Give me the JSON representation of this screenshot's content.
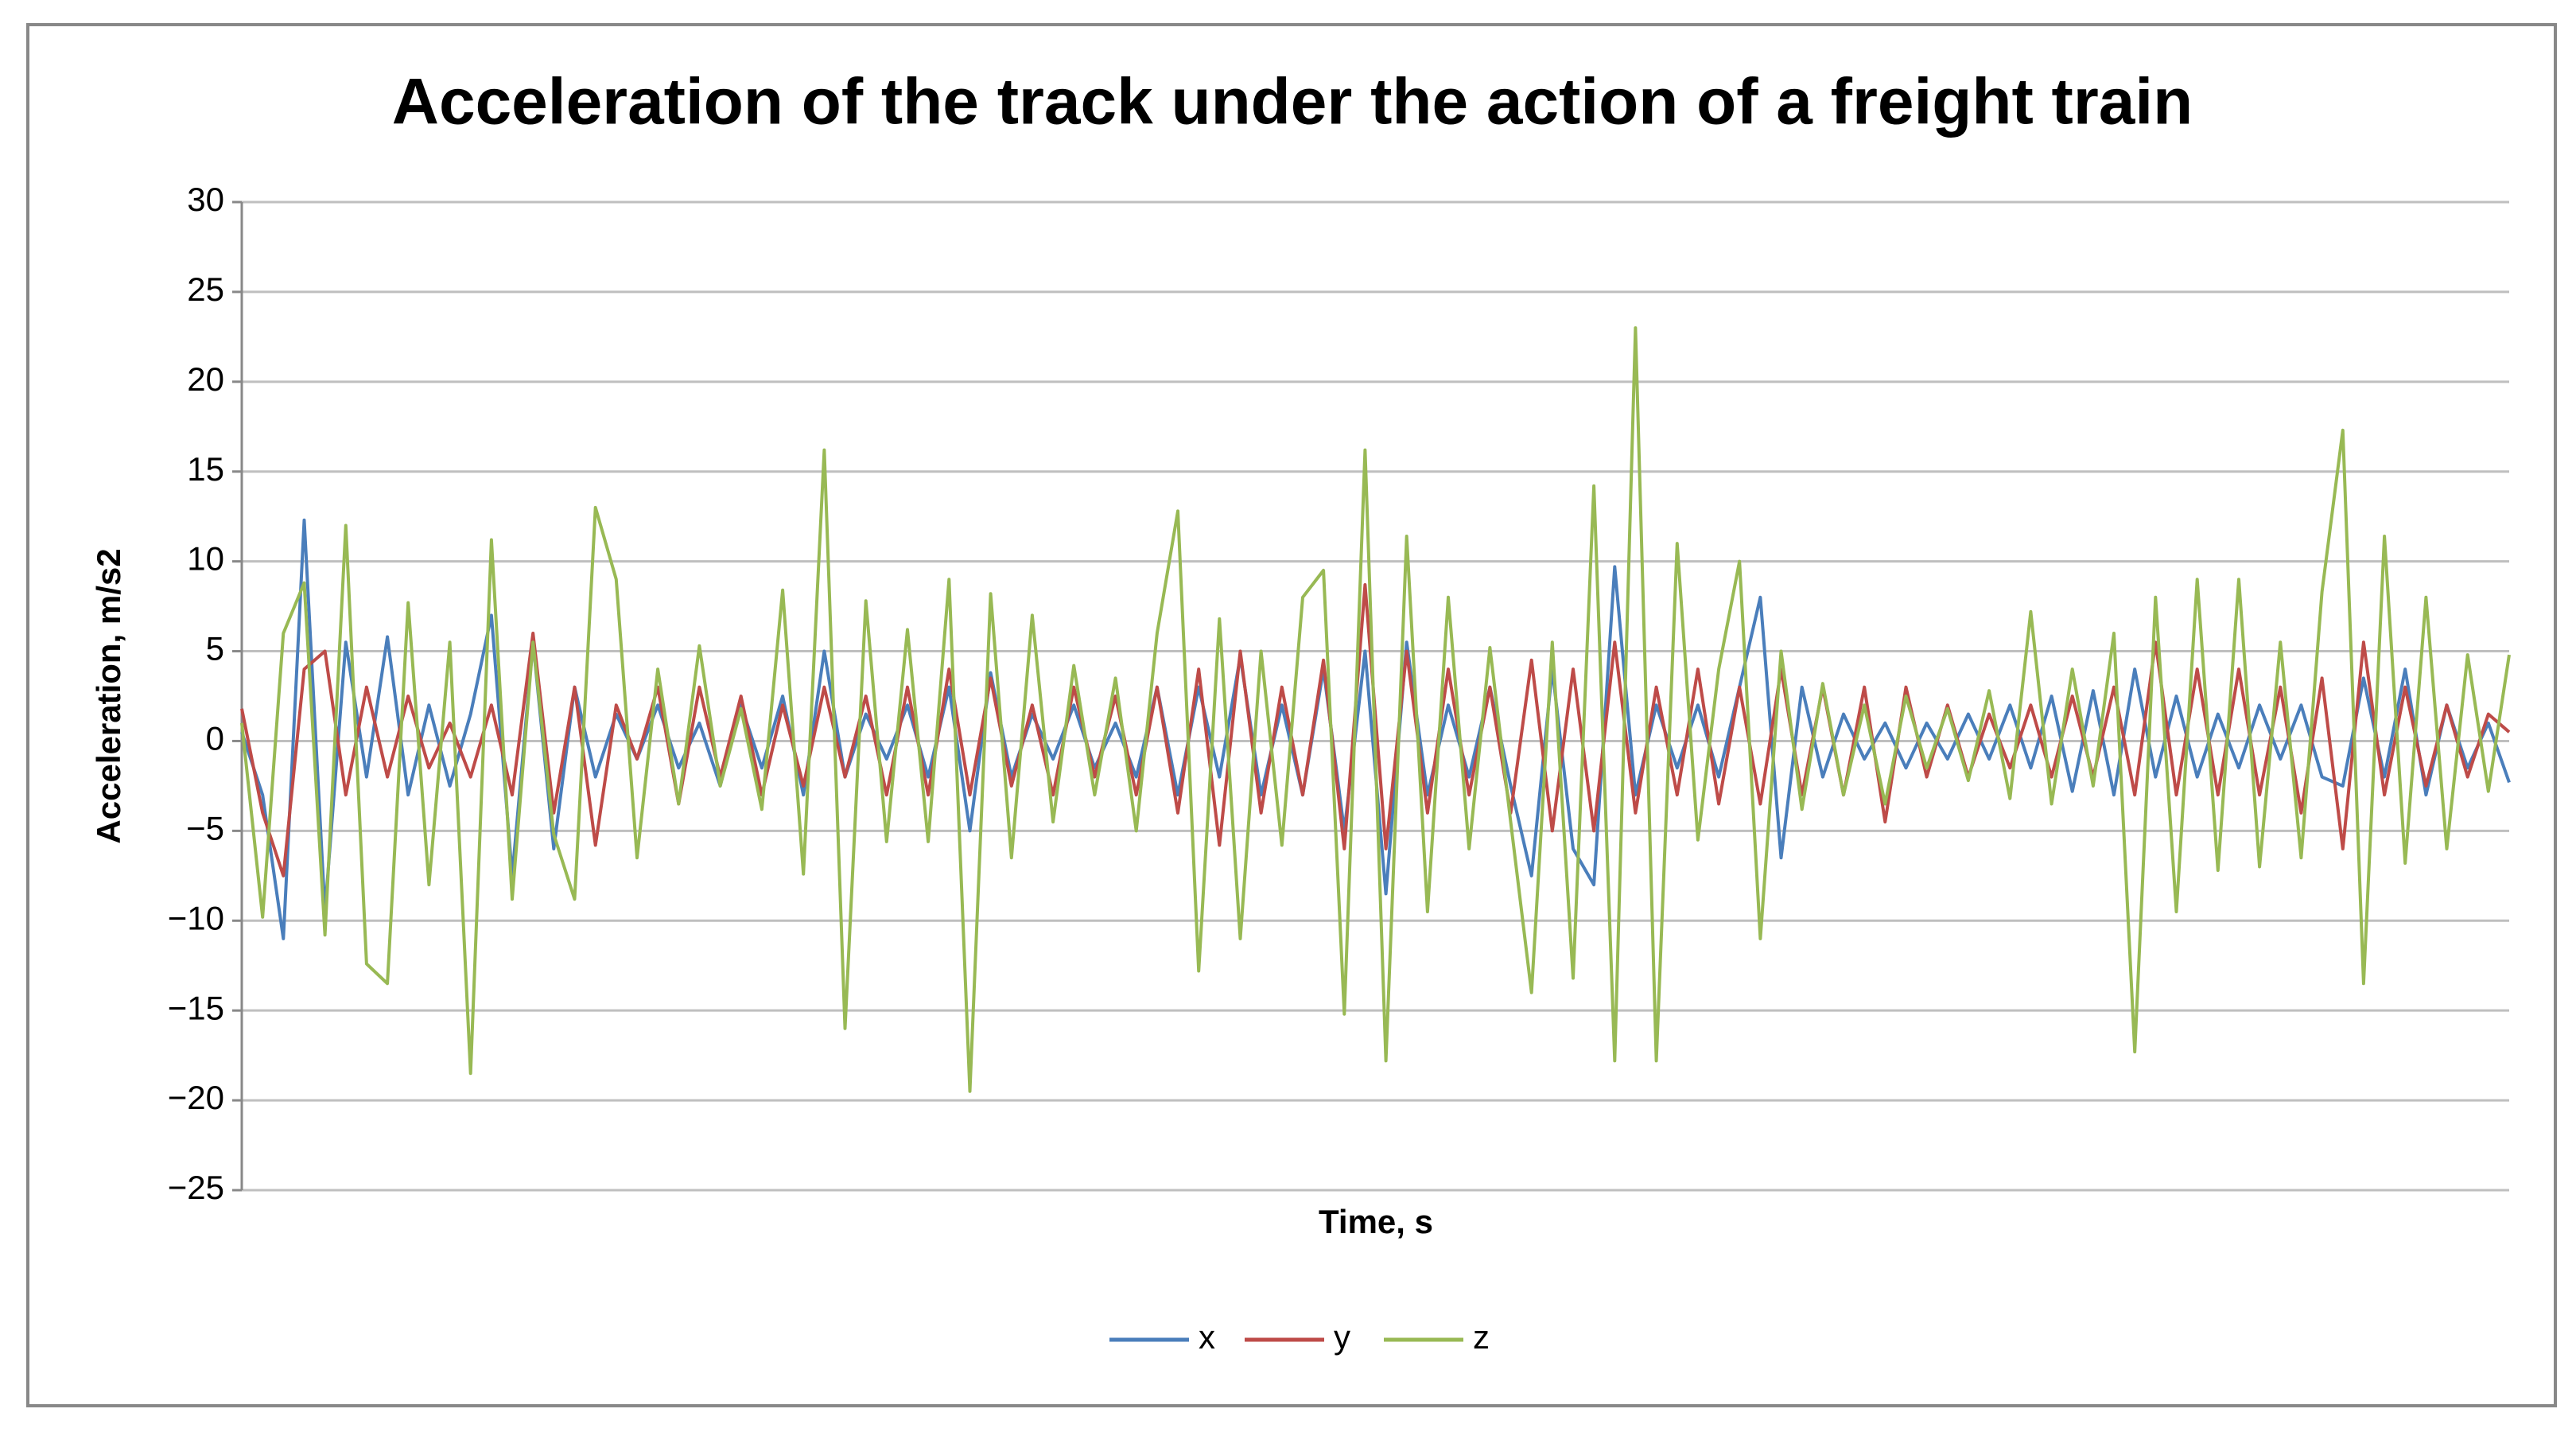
{
  "chart_data": {
    "type": "line",
    "title": "Acceleration of the track under the action of a freight train",
    "x_label": "Time, s",
    "y_label": "Acceleration, m/s2",
    "ylim": [
      -25,
      30
    ],
    "yticks": [
      {
        "value": -25,
        "label": "−25"
      },
      {
        "value": -20,
        "label": "−20"
      },
      {
        "value": -15,
        "label": "−15"
      },
      {
        "value": -10,
        "label": "−10"
      },
      {
        "value": -5,
        "label": "−5"
      },
      0,
      5,
      10,
      15,
      20,
      25,
      30
    ],
    "grid": true,
    "legend": "bottom",
    "series": [
      {
        "name": "x",
        "color": "#4a7ebb",
        "values": [
          0.5,
          -3,
          -11,
          12.3,
          -9.5,
          5.5,
          -2,
          5.8,
          -3,
          2,
          -2.5,
          1.5,
          7,
          -7.5,
          5.5,
          -6,
          3,
          -2,
          1.5,
          -1,
          2,
          -1.5,
          1,
          -2.5,
          2,
          -1.5,
          2.5,
          -3,
          5,
          -2,
          1.5,
          -1,
          2,
          -2,
          3,
          -5,
          3.8,
          -2,
          1.5,
          -1,
          2,
          -1.5,
          1,
          -2,
          3,
          -3,
          3,
          -2,
          4.7,
          -3,
          2,
          -3,
          4,
          -5,
          5,
          -8.5,
          5.5,
          -3,
          2,
          -2,
          3,
          -2.5,
          -7.5,
          4,
          -6,
          -8,
          9.7,
          -3,
          2,
          -1.5,
          2,
          -2,
          3,
          8,
          -6.5,
          3,
          -2,
          1.5,
          -1,
          1,
          -1.5,
          1,
          -1,
          1.5,
          -1,
          2,
          -1.5,
          2.5,
          -2.8,
          2.8,
          -3,
          4,
          -2,
          2.5,
          -2,
          1.5,
          -1.5,
          2,
          -1,
          2,
          -2,
          -2.5,
          3.5,
          -2,
          4,
          -3,
          2,
          -1.5,
          1,
          -2.3
        ]
      },
      {
        "name": "y",
        "color": "#be4b48",
        "values": [
          1.8,
          -4,
          -7.5,
          4,
          5,
          -3,
          3,
          -2,
          2.5,
          -1.5,
          1,
          -2,
          2,
          -3,
          6,
          -4,
          3,
          -5.8,
          2,
          -1,
          3,
          -3.5,
          3,
          -2,
          2.5,
          -3,
          2,
          -2.5,
          3,
          -2,
          2.5,
          -3,
          3,
          -3,
          4,
          -3,
          3.5,
          -2.5,
          2,
          -3,
          3,
          -2,
          2.5,
          -3,
          3,
          -4,
          4,
          -5.8,
          5,
          -4,
          3,
          -3,
          4.5,
          -6,
          8.7,
          -6,
          5,
          -4,
          4,
          -3,
          3,
          -4,
          4.5,
          -5,
          4,
          -5,
          5.5,
          -4,
          3,
          -3,
          4,
          -3.5,
          3,
          -3.5,
          4,
          -3,
          3,
          -3,
          3,
          -4.5,
          3,
          -2,
          2,
          -2,
          1.5,
          -1.5,
          2,
          -2,
          2.5,
          -2,
          3,
          -3,
          5.5,
          -3,
          4,
          -3,
          4,
          -3,
          3,
          -4,
          3.5,
          -6,
          5.5,
          -3,
          3,
          -2.5,
          2,
          -2,
          1.5,
          0.5
        ]
      },
      {
        "name": "z",
        "color": "#98b954",
        "values": [
          1,
          -9.8,
          6,
          8.8,
          -10.8,
          12,
          -12.4,
          -13.5,
          7.7,
          -8,
          5.5,
          -18.5,
          11.2,
          -8.8,
          5.5,
          -5.2,
          -8.8,
          13,
          9,
          -6.5,
          4,
          -3.5,
          5.3,
          -2.5,
          1.8,
          -3.8,
          8.4,
          -7.4,
          16.2,
          -16,
          7.8,
          -5.6,
          6.2,
          -5.6,
          9,
          -19.5,
          8.2,
          -6.5,
          7,
          -4.5,
          4.2,
          -3,
          3.5,
          -5,
          6,
          12.8,
          -12.8,
          6.8,
          -11,
          5,
          -5.8,
          8,
          9.5,
          -15.2,
          16.2,
          -17.8,
          11.4,
          -9.5,
          8,
          -6,
          5.2,
          -4.5,
          -14,
          5.5,
          -13.2,
          14.2,
          -17.8,
          23,
          -17.8,
          11,
          -5.5,
          4,
          10,
          -11,
          5,
          -3.8,
          3.2,
          -3,
          2,
          -3.5,
          2.5,
          -1.5,
          1.8,
          -2.2,
          2.8,
          -3.2,
          7.2,
          -3.5,
          4,
          -2.5,
          6,
          -17.3,
          8,
          -9.5,
          9,
          -7.2,
          9,
          -7,
          5.5,
          -6.5,
          8.3,
          17.3,
          -13.5,
          11.4,
          -6.8,
          8,
          -6,
          4.8,
          -2.8,
          4.8
        ]
      }
    ]
  }
}
